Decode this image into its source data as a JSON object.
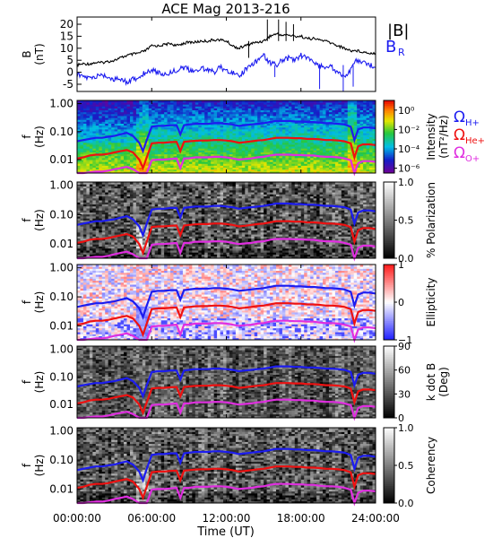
{
  "title": "ACE Mag 2013-216",
  "xlabel": "Time (UT)",
  "x_ticks": [
    "00:00:00",
    "06:00:00",
    "12:00:00",
    "18:00:00",
    "24:00:00"
  ],
  "x_tick_hours": [
    0,
    6,
    12,
    18,
    24
  ],
  "colors": {
    "B_total": "#000000",
    "B_R": "#1c1cf0",
    "omega_H": "#1c1cf0",
    "omega_He": "#ee1111",
    "omega_O": "#e02ee0"
  },
  "chart_data": [
    {
      "type": "line",
      "panel": "field",
      "ylabel": "B",
      "yunits": "(nT)",
      "ylim": [
        -8,
        23
      ],
      "y_ticks": [
        "-5",
        "0",
        "5",
        "10",
        "15",
        "20"
      ],
      "y_tick_values": [
        -5,
        0,
        5,
        10,
        15,
        20
      ],
      "legend": [
        "|B|",
        "B"
      ],
      "legend_sub": [
        "",
        "R"
      ],
      "series": [
        {
          "name": "|B|",
          "x": [
            0,
            0.5,
            1,
            1.5,
            2,
            2.5,
            3,
            3.5,
            4,
            4.5,
            5,
            5.5,
            6,
            6.5,
            7,
            7.5,
            8,
            8.5,
            9,
            9.5,
            10,
            10.5,
            11,
            11.5,
            12,
            12.5,
            13,
            13.5,
            14,
            14.5,
            15,
            15.5,
            16,
            16.5,
            17,
            17.5,
            18,
            18.5,
            19,
            19.5,
            20,
            20.5,
            21,
            21.5,
            22,
            22.5,
            23,
            23.5,
            24
          ],
          "values": [
            3,
            3.5,
            3.5,
            4,
            4,
            4.5,
            5,
            6,
            7,
            7.5,
            8,
            9,
            11,
            11,
            11.5,
            12,
            11,
            12,
            12.5,
            12.5,
            13,
            13,
            13.5,
            13.5,
            13,
            11,
            10,
            11,
            12,
            12.5,
            13,
            15,
            16,
            15.5,
            15.5,
            15,
            15,
            14,
            14,
            13.5,
            13,
            12,
            11,
            10,
            9,
            9,
            8.5,
            8,
            8
          ]
        },
        {
          "name": "B_R",
          "x": [
            0,
            0.5,
            1,
            1.5,
            2,
            2.5,
            3,
            3.5,
            4,
            4.5,
            5,
            5.5,
            6,
            6.5,
            7,
            7.5,
            8,
            8.5,
            9,
            9.5,
            10,
            10.5,
            11,
            11.5,
            12,
            12.5,
            13,
            13.5,
            14,
            14.5,
            15,
            15.5,
            16,
            16.5,
            17,
            17.5,
            18,
            18.5,
            19,
            19.5,
            20,
            20.5,
            21,
            21.5,
            22,
            22.5,
            23,
            23.5,
            24
          ],
          "values": [
            -1,
            -2,
            -2.5,
            -2,
            -1,
            -2,
            -3,
            -3,
            -4,
            -3,
            -2,
            0,
            1,
            0,
            -1,
            0,
            1,
            2,
            1,
            0,
            2,
            1,
            0,
            2,
            1,
            0,
            -2,
            1,
            3,
            5,
            7,
            4,
            3,
            5,
            6,
            5,
            7,
            6,
            4,
            3,
            2,
            2,
            0,
            -2,
            1,
            5,
            4,
            3,
            2
          ]
        }
      ]
    },
    {
      "type": "heatmap",
      "panel": "intensity",
      "ylabel": "f",
      "yunits": "(Hz)",
      "ylim": [
        0.0033,
        1.3
      ],
      "y_scale": "log",
      "y_ticks": [
        "1.00",
        "0.10",
        "0.01"
      ],
      "y_tick_values": [
        1,
        0.1,
        0.01
      ],
      "colorbar_label": "Intensity",
      "colorbar_units": "(nT²/Hz)",
      "colorbar_ticks": [
        "10⁰",
        "10⁻²",
        "10⁻⁴",
        "10⁻⁶"
      ],
      "colorbar_tick_values": [
        0,
        -2,
        -4,
        -6
      ],
      "colorbar_range": [
        -6.5,
        1
      ],
      "colormap": "rainbow",
      "overlay": [
        "omega_H",
        "omega_He",
        "omega_O"
      ],
      "legend": [
        "Ω",
        "Ω",
        "Ω"
      ],
      "legend_sub": [
        "H+",
        "He+",
        "O+"
      ]
    },
    {
      "type": "heatmap",
      "panel": "polarization",
      "ylabel": "f",
      "yunits": "(Hz)",
      "y_scale": "log",
      "y_ticks": [
        "1.00",
        "0.10",
        "0.01"
      ],
      "y_tick_values": [
        1,
        0.1,
        0.01
      ],
      "colorbar_label": "% Polarization",
      "colorbar_ticks": [
        "1.0",
        "0.5",
        "0.0"
      ],
      "colorbar_tick_values": [
        1,
        0.5,
        0
      ],
      "colorbar_range": [
        0,
        1
      ],
      "colormap": "gray",
      "overlay": [
        "omega_H",
        "omega_He",
        "omega_O"
      ]
    },
    {
      "type": "heatmap",
      "panel": "ellipticity",
      "ylabel": "f",
      "yunits": "(Hz)",
      "y_scale": "log",
      "y_ticks": [
        "1.00",
        "0.10",
        "0.01"
      ],
      "y_tick_values": [
        1,
        0.1,
        0.01
      ],
      "colorbar_label": "Ellipticity",
      "colorbar_ticks": [
        "1",
        "0",
        "−1"
      ],
      "colorbar_tick_values": [
        1,
        0,
        -1
      ],
      "colorbar_range": [
        -1,
        1
      ],
      "colormap": "blue-white-red",
      "overlay": [
        "omega_H",
        "omega_He",
        "omega_O"
      ]
    },
    {
      "type": "heatmap",
      "panel": "kdotb",
      "ylabel": "f",
      "yunits": "(Hz)",
      "y_scale": "log",
      "y_ticks": [
        "1.00",
        "0.10",
        "0.01"
      ],
      "y_tick_values": [
        1,
        0.1,
        0.01
      ],
      "colorbar_label": "k dot B",
      "colorbar_units": "(Deg)",
      "colorbar_ticks": [
        "90",
        "60",
        "30",
        "0"
      ],
      "colorbar_tick_values": [
        90,
        60,
        30,
        0
      ],
      "colorbar_range": [
        0,
        90
      ],
      "colormap": "gray",
      "overlay": [
        "omega_H",
        "omega_He",
        "omega_O"
      ]
    },
    {
      "type": "heatmap",
      "panel": "coherency",
      "ylabel": "f",
      "yunits": "(Hz)",
      "y_scale": "log",
      "y_ticks": [
        "1.00",
        "0.10",
        "0.01"
      ],
      "y_tick_values": [
        1,
        0.1,
        0.01
      ],
      "colorbar_label": "Coherency",
      "colorbar_ticks": [
        "1.0",
        "0.5",
        "0.0"
      ],
      "colorbar_tick_values": [
        1,
        0.5,
        0
      ],
      "colorbar_range": [
        0,
        1
      ],
      "colormap": "gray",
      "overlay": [
        "omega_H",
        "omega_He",
        "omega_O"
      ]
    }
  ],
  "gyrofrequency_lines": {
    "x": [
      0,
      0.5,
      1,
      1.5,
      2,
      2.5,
      3,
      3.5,
      4,
      4.5,
      5,
      5.3,
      5.6,
      6,
      6.5,
      7,
      7.5,
      8,
      8.3,
      8.6,
      9,
      9.5,
      10,
      10.5,
      11,
      11.5,
      12,
      12.5,
      13,
      13.5,
      14,
      14.5,
      15,
      15.5,
      16,
      16.5,
      17,
      17.5,
      18,
      18.5,
      19,
      19.5,
      20,
      20.5,
      21,
      21.5,
      22,
      22.3,
      22.6,
      23,
      23.5,
      24
    ],
    "omega_H": [
      0.045,
      0.05,
      0.055,
      0.06,
      0.06,
      0.065,
      0.07,
      0.08,
      0.09,
      0.07,
      0.04,
      0.02,
      0.05,
      0.15,
      0.16,
      0.16,
      0.17,
      0.17,
      0.08,
      0.17,
      0.18,
      0.19,
      0.19,
      0.19,
      0.2,
      0.2,
      0.19,
      0.18,
      0.16,
      0.17,
      0.18,
      0.19,
      0.2,
      0.22,
      0.24,
      0.24,
      0.24,
      0.23,
      0.23,
      0.22,
      0.22,
      0.21,
      0.2,
      0.2,
      0.19,
      0.18,
      0.15,
      0.05,
      0.12,
      0.14,
      0.14,
      0.13
    ],
    "omega_He": [
      0.011,
      0.012,
      0.014,
      0.015,
      0.015,
      0.016,
      0.018,
      0.02,
      0.022,
      0.018,
      0.01,
      0.005,
      0.012,
      0.038,
      0.04,
      0.04,
      0.042,
      0.043,
      0.02,
      0.043,
      0.045,
      0.047,
      0.048,
      0.048,
      0.05,
      0.05,
      0.048,
      0.045,
      0.04,
      0.042,
      0.045,
      0.048,
      0.05,
      0.055,
      0.06,
      0.06,
      0.06,
      0.058,
      0.058,
      0.055,
      0.055,
      0.053,
      0.05,
      0.05,
      0.048,
      0.045,
      0.038,
      0.012,
      0.03,
      0.035,
      0.035,
      0.033
    ],
    "omega_O": [
      0.003,
      0.003,
      0.0035,
      0.0037,
      0.0037,
      0.004,
      0.0045,
      0.005,
      0.0055,
      0.0045,
      0.003,
      0.003,
      0.003,
      0.0095,
      0.01,
      0.01,
      0.0105,
      0.011,
      0.005,
      0.011,
      0.011,
      0.012,
      0.012,
      0.012,
      0.0125,
      0.0125,
      0.012,
      0.011,
      0.01,
      0.0105,
      0.011,
      0.012,
      0.0125,
      0.014,
      0.015,
      0.015,
      0.015,
      0.0145,
      0.0145,
      0.014,
      0.014,
      0.013,
      0.0125,
      0.0125,
      0.012,
      0.011,
      0.0095,
      0.003,
      0.0075,
      0.0088,
      0.0088,
      0.0083
    ]
  }
}
